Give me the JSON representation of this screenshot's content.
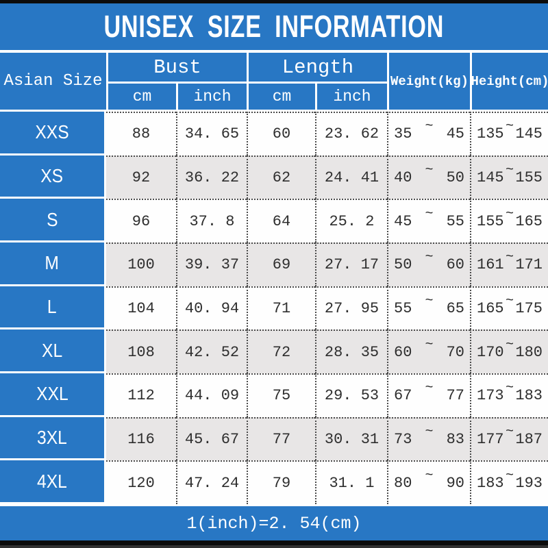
{
  "title": "UNISEX SIZE INFORMATION",
  "footer_note": "1(inch)=2. 54(cm)",
  "chars": {
    "tilde": "~"
  },
  "colors": {
    "blue": "#2877c4",
    "row_alt": "#e8e6e6",
    "bar_black": "#0c0c0c",
    "text_dark": "#2e2e2e"
  },
  "header": {
    "size_col": "Asian Size",
    "groups": [
      {
        "label": "Bust",
        "subs": [
          "cm",
          "inch"
        ]
      },
      {
        "label": "Length",
        "subs": [
          "cm",
          "inch"
        ]
      }
    ],
    "weight": "Weight(kg)",
    "height": "Height(cm)"
  },
  "rows": [
    {
      "size": "XXS",
      "bust_cm": "88",
      "bust_inch": "34. 65",
      "length_cm": "60",
      "length_inch": "23. 62",
      "weight_min": "35",
      "weight_max": "45",
      "height_min": "135",
      "height_max": "145"
    },
    {
      "size": "XS",
      "bust_cm": "92",
      "bust_inch": "36. 22",
      "length_cm": "62",
      "length_inch": "24. 41",
      "weight_min": "40",
      "weight_max": "50",
      "height_min": "145",
      "height_max": "155"
    },
    {
      "size": "S",
      "bust_cm": "96",
      "bust_inch": "37. 8",
      "length_cm": "64",
      "length_inch": "25. 2",
      "weight_min": "45",
      "weight_max": "55",
      "height_min": "155",
      "height_max": "165"
    },
    {
      "size": "M",
      "bust_cm": "100",
      "bust_inch": "39. 37",
      "length_cm": "69",
      "length_inch": "27. 17",
      "weight_min": "50",
      "weight_max": "60",
      "height_min": "161",
      "height_max": "171"
    },
    {
      "size": "L",
      "bust_cm": "104",
      "bust_inch": "40. 94",
      "length_cm": "71",
      "length_inch": "27. 95",
      "weight_min": "55",
      "weight_max": "65",
      "height_min": "165",
      "height_max": "175"
    },
    {
      "size": "XL",
      "bust_cm": "108",
      "bust_inch": "42. 52",
      "length_cm": "72",
      "length_inch": "28. 35",
      "weight_min": "60",
      "weight_max": "70",
      "height_min": "170",
      "height_max": "180"
    },
    {
      "size": "XXL",
      "bust_cm": "112",
      "bust_inch": "44. 09",
      "length_cm": "75",
      "length_inch": "29. 53",
      "weight_min": "67",
      "weight_max": "77",
      "height_min": "173",
      "height_max": "183"
    },
    {
      "size": "3XL",
      "bust_cm": "116",
      "bust_inch": "45. 67",
      "length_cm": "77",
      "length_inch": "30. 31",
      "weight_min": "73",
      "weight_max": "83",
      "height_min": "177",
      "height_max": "187"
    },
    {
      "size": "4XL",
      "bust_cm": "120",
      "bust_inch": "47. 24",
      "length_cm": "79",
      "length_inch": "31. 1",
      "weight_min": "80",
      "weight_max": "90",
      "height_min": "183",
      "height_max": "193"
    }
  ],
  "chart_data": {
    "type": "table",
    "title": "UNISEX SIZE INFORMATION",
    "note": "1(inch)=2.54(cm)",
    "columns": [
      "Asian Size",
      "Bust cm",
      "Bust inch",
      "Length cm",
      "Length inch",
      "Weight(kg)",
      "Height(cm)"
    ],
    "rows": [
      [
        "XXS",
        88,
        34.65,
        60,
        23.62,
        "35~45",
        "135~145"
      ],
      [
        "XS",
        92,
        36.22,
        62,
        24.41,
        "40~50",
        "145~155"
      ],
      [
        "S",
        96,
        37.8,
        64,
        25.2,
        "45~55",
        "155~165"
      ],
      [
        "M",
        100,
        39.37,
        69,
        27.17,
        "50~60",
        "161~171"
      ],
      [
        "L",
        104,
        40.94,
        71,
        27.95,
        "55~65",
        "165~175"
      ],
      [
        "XL",
        108,
        42.52,
        72,
        28.35,
        "60~70",
        "170~180"
      ],
      [
        "XXL",
        112,
        44.09,
        75,
        29.53,
        "67~77",
        "173~183"
      ],
      [
        "3XL",
        116,
        45.67,
        77,
        30.31,
        "73~83",
        "177~187"
      ],
      [
        "4XL",
        120,
        47.24,
        79,
        31.1,
        "80~90",
        "183~193"
      ]
    ]
  }
}
